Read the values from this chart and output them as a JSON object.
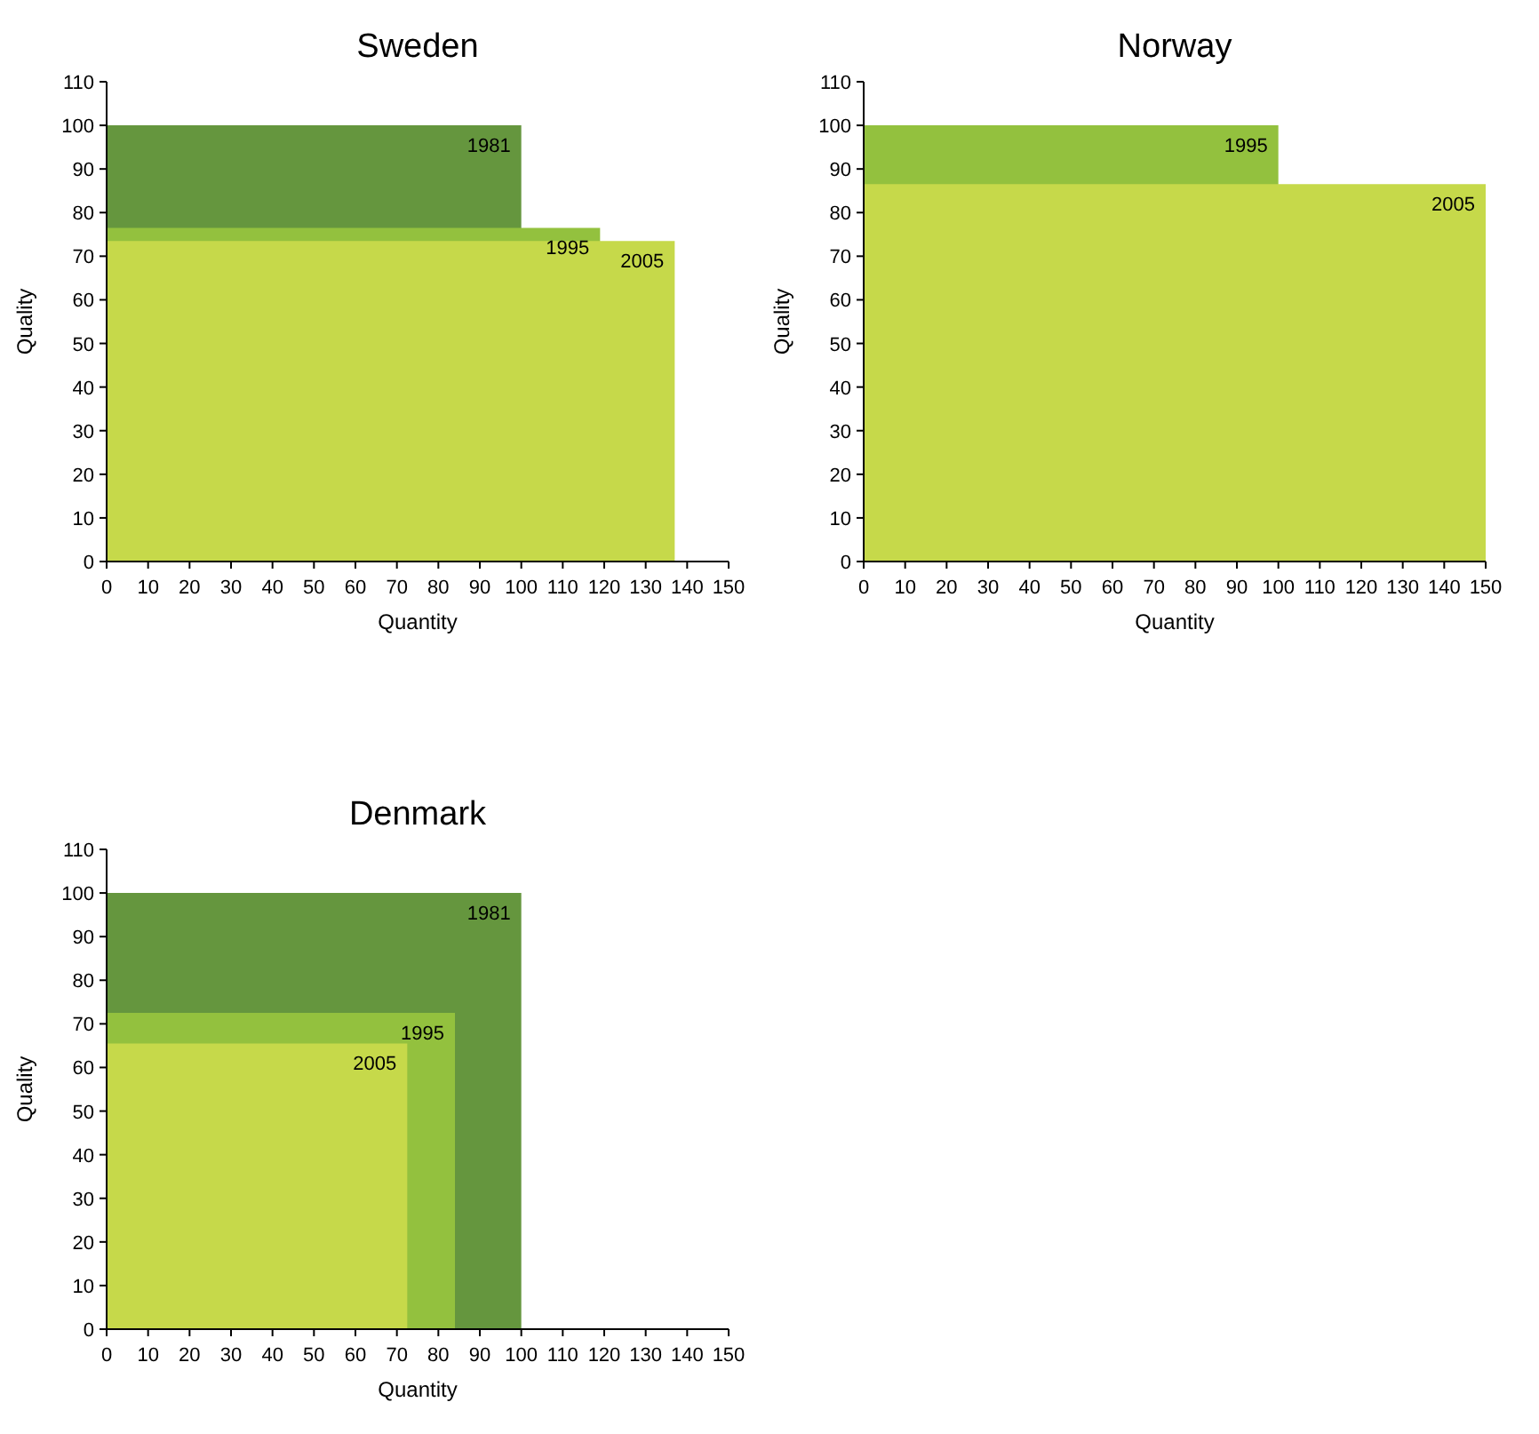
{
  "chart_data": [
    {
      "type": "area",
      "title": "Sweden",
      "xlabel": "Quantity",
      "ylabel": "Quality",
      "xlim": [
        0,
        150
      ],
      "xticks": [
        0,
        10,
        20,
        30,
        40,
        50,
        60,
        70,
        80,
        90,
        100,
        110,
        120,
        130,
        140,
        150
      ],
      "ylim": [
        0,
        110
      ],
      "yticks": [
        0,
        10,
        20,
        30,
        40,
        50,
        60,
        70,
        80,
        90,
        100,
        110
      ],
      "series": [
        {
          "name": "1981",
          "color": "#65963e",
          "x": [
            0,
            100
          ],
          "values": [
            100,
            100
          ]
        },
        {
          "name": "1995",
          "color": "#93c13e",
          "x": [
            0,
            119
          ],
          "values": [
            76.5,
            76.5
          ]
        },
        {
          "name": "2005",
          "color": "#c6d94a",
          "x": [
            0,
            137
          ],
          "values": [
            73.5,
            73.5
          ]
        }
      ]
    },
    {
      "type": "area",
      "title": "Norway",
      "xlabel": "Quantity",
      "ylabel": "Quality",
      "xlim": [
        0,
        150
      ],
      "xticks": [
        0,
        10,
        20,
        30,
        40,
        50,
        60,
        70,
        80,
        90,
        100,
        110,
        120,
        130,
        140,
        150
      ],
      "ylim": [
        0,
        110
      ],
      "yticks": [
        0,
        10,
        20,
        30,
        40,
        50,
        60,
        70,
        80,
        90,
        100,
        110
      ],
      "series": [
        {
          "name": "1995",
          "color": "#93c13e",
          "x": [
            0,
            100
          ],
          "values": [
            100,
            100
          ]
        },
        {
          "name": "2005",
          "color": "#c6d94a",
          "x": [
            0,
            150
          ],
          "values": [
            86.5,
            86.5
          ]
        }
      ]
    },
    {
      "type": "area",
      "title": "Denmark",
      "xlabel": "Quantity",
      "ylabel": "Quality",
      "xlim": [
        0,
        150
      ],
      "xticks": [
        0,
        10,
        20,
        30,
        40,
        50,
        60,
        70,
        80,
        90,
        100,
        110,
        120,
        130,
        140,
        150
      ],
      "ylim": [
        0,
        110
      ],
      "yticks": [
        0,
        10,
        20,
        30,
        40,
        50,
        60,
        70,
        80,
        90,
        100,
        110
      ],
      "series": [
        {
          "name": "1981",
          "color": "#65963e",
          "x": [
            0,
            100
          ],
          "values": [
            100,
            100
          ]
        },
        {
          "name": "1995",
          "color": "#93c13e",
          "x": [
            0,
            84
          ],
          "values": [
            72.5,
            72.5
          ]
        },
        {
          "name": "2005",
          "color": "#c6d94a",
          "x": [
            0,
            72.5
          ],
          "values": [
            65.5,
            65.5
          ]
        }
      ]
    }
  ]
}
